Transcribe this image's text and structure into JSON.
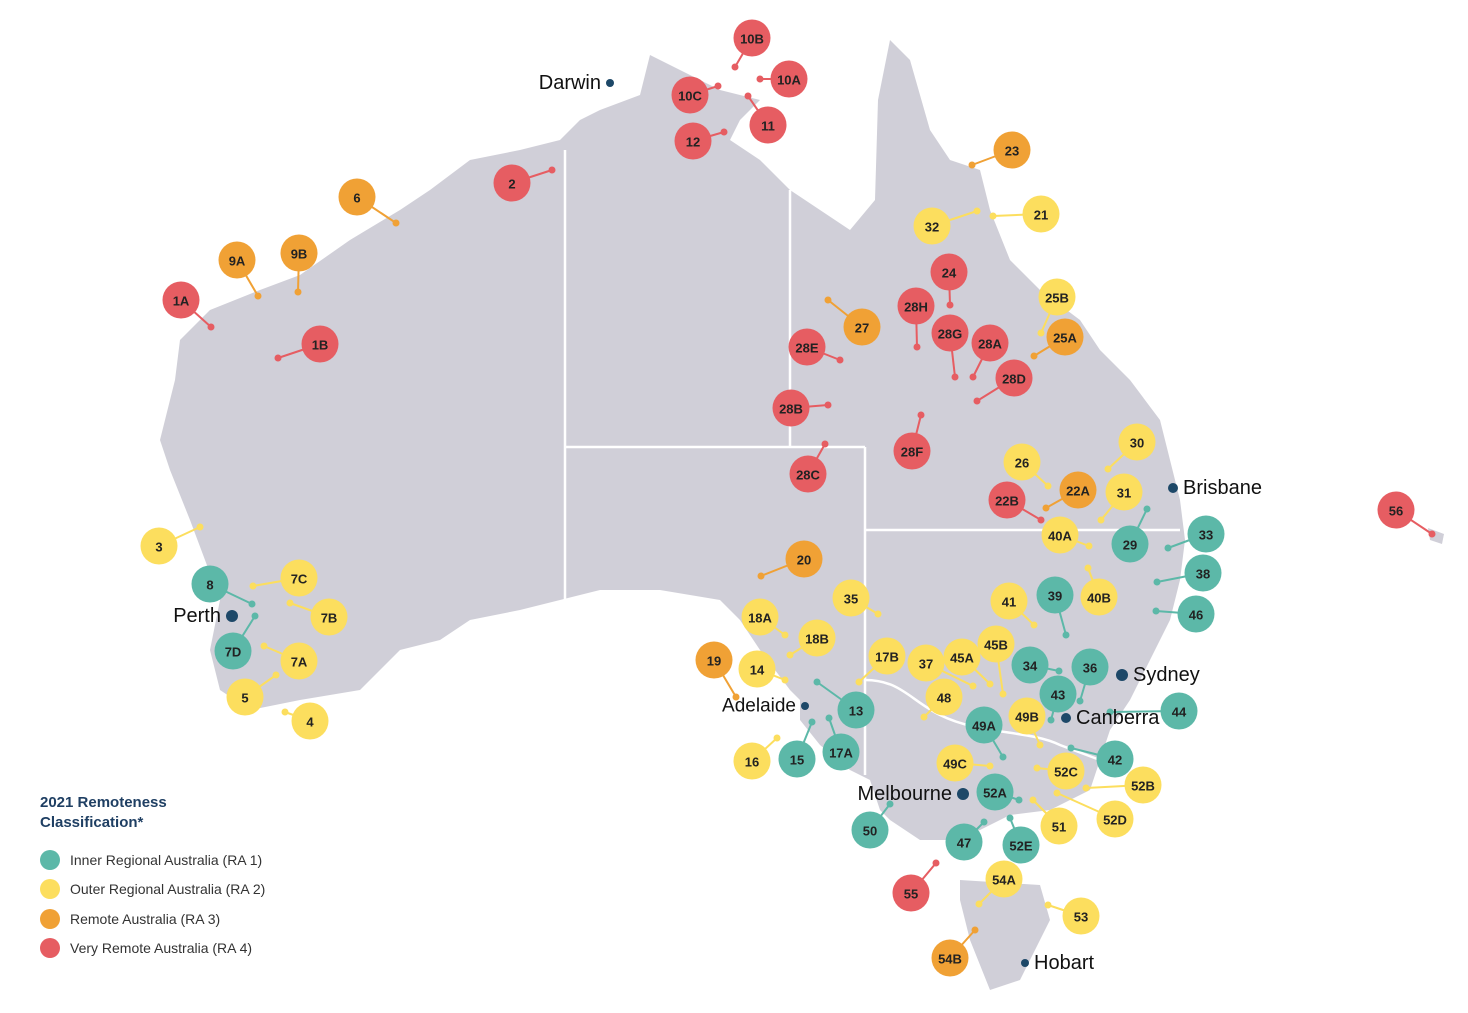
{
  "cities": [
    "Darwin",
    "Perth",
    "Adelaide",
    "Brisbane",
    "Sydney",
    "Canberra",
    "Melbourne",
    "Hobart"
  ],
  "legend": {
    "title": "2021 Remoteness Classification*",
    "items": [
      {
        "label": "Inner Regional Australia (RA 1)",
        "color": "#5cb8a8",
        "sites": [
          "8",
          "7D",
          "13",
          "15",
          "17A",
          "29",
          "33",
          "38",
          "46",
          "39",
          "34",
          "36",
          "43",
          "44",
          "49A",
          "42",
          "52A",
          "50",
          "47",
          "52E"
        ]
      },
      {
        "label": "Outer Regional Australia (RA 2)",
        "color": "#fcde5e",
        "sites": [
          "3",
          "7C",
          "7B",
          "7A",
          "5",
          "4",
          "32",
          "21",
          "25B",
          "26",
          "30",
          "31",
          "40A",
          "40B",
          "35",
          "18A",
          "18B",
          "14",
          "17B",
          "37",
          "45A",
          "45B",
          "41",
          "48",
          "49B",
          "16",
          "49C",
          "52C",
          "52B",
          "52D",
          "51",
          "54A",
          "53"
        ]
      },
      {
        "label": "Remote Australia (RA 3)",
        "color": "#f0a135",
        "sites": [
          "23",
          "6",
          "9A",
          "9B",
          "27",
          "25A",
          "22A",
          "20",
          "19",
          "54B"
        ]
      },
      {
        "label": "Very Remote Australia (RA 4)",
        "color": "#e65d62",
        "sites": [
          "10B",
          "10A",
          "10C",
          "11",
          "12",
          "2",
          "1A",
          "1B",
          "24",
          "28H",
          "28G",
          "28A",
          "28D",
          "28E",
          "28B",
          "28F",
          "28C",
          "22B",
          "56",
          "55"
        ]
      }
    ]
  }
}
